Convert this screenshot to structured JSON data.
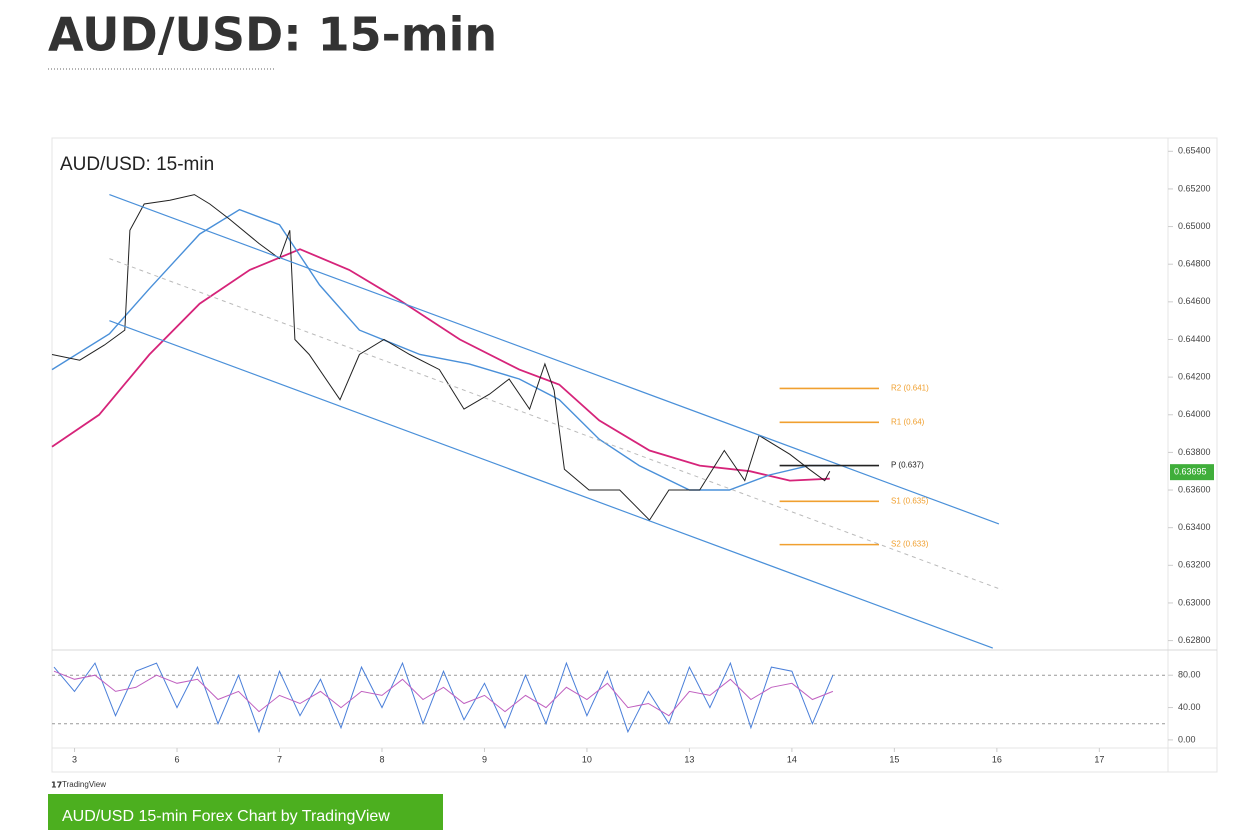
{
  "header": {
    "title": "AUD/USD: 15-min"
  },
  "chart_data": [
    {
      "type": "line",
      "title": "AUD/USD: 15-min",
      "xlim": [
        -0.22,
        10.67
      ],
      "ylim": [
        0.6275,
        0.6546
      ],
      "yticks": [
        {
          "value": 0.654,
          "label": "0.65400"
        },
        {
          "value": 0.652,
          "label": "0.65200"
        },
        {
          "value": 0.65,
          "label": "0.65000"
        },
        {
          "value": 0.648,
          "label": "0.64800"
        },
        {
          "value": 0.646,
          "label": "0.64600"
        },
        {
          "value": 0.644,
          "label": "0.64400"
        },
        {
          "value": 0.642,
          "label": "0.64200"
        },
        {
          "value": 0.64,
          "label": "0.64000"
        },
        {
          "value": 0.638,
          "label": "0.63800"
        },
        {
          "value": 0.636,
          "label": "0.63600"
        },
        {
          "value": 0.634,
          "label": "0.63400"
        },
        {
          "value": 0.632,
          "label": "0.63200"
        },
        {
          "value": 0.63,
          "label": "0.63000"
        },
        {
          "value": 0.628,
          "label": "0.62800"
        }
      ],
      "series": [
        {
          "color": "#d6247a",
          "width": 1.8,
          "x": [
            -0.22,
            0.24,
            0.73,
            1.22,
            1.71,
            2.2,
            2.68,
            3.17,
            3.76,
            4.34,
            4.73,
            5.12,
            5.61,
            6.1,
            6.59,
            6.98,
            7.37
          ],
          "values": [
            0.6383,
            0.64,
            0.6432,
            0.6459,
            0.6477,
            0.6488,
            0.6477,
            0.6461,
            0.644,
            0.6424,
            0.6416,
            0.6397,
            0.6381,
            0.6373,
            0.637,
            0.6365,
            0.6366
          ]
        },
        {
          "color": "#4a90d9",
          "width": 1.4,
          "x": [
            -0.22,
            0.34,
            0.73,
            1.22,
            1.61,
            2.0,
            2.39,
            2.78,
            3.37,
            3.85,
            4.34,
            4.73,
            5.12,
            5.51,
            6.0,
            6.39,
            6.78,
            7.17,
            7.37
          ],
          "values": [
            0.6424,
            0.6443,
            0.6467,
            0.6496,
            0.6509,
            0.6501,
            0.6469,
            0.6445,
            0.6432,
            0.6427,
            0.6419,
            0.6408,
            0.6387,
            0.6373,
            0.636,
            0.636,
            0.6368,
            0.6373,
            0.6373
          ]
        },
        {
          "color": "#222222",
          "width": 1,
          "x": [
            -0.22,
            0.05,
            0.29,
            0.49,
            0.54,
            0.68,
            0.93,
            1.17,
            1.32,
            1.51,
            1.8,
            2.0,
            2.1,
            2.15,
            2.29,
            2.59,
            2.78,
            3.02,
            3.27,
            3.56,
            3.8,
            4.05,
            4.24,
            4.44,
            4.59,
            4.68,
            4.78,
            5.02,
            5.32,
            5.61,
            5.8,
            6.1,
            6.34,
            6.54,
            6.68,
            6.98,
            7.17,
            7.32,
            7.37
          ],
          "values": [
            0.6432,
            0.6429,
            0.6437,
            0.6445,
            0.6498,
            0.6512,
            0.6514,
            0.6517,
            0.6512,
            0.6504,
            0.6491,
            0.6483,
            0.6498,
            0.644,
            0.6432,
            0.6408,
            0.6432,
            0.644,
            0.6432,
            0.6424,
            0.6403,
            0.6411,
            0.6419,
            0.6403,
            0.6427,
            0.6413,
            0.6371,
            0.636,
            0.636,
            0.6344,
            0.636,
            0.636,
            0.6381,
            0.6365,
            0.6389,
            0.6379,
            0.6371,
            0.6365,
            0.637
          ]
        },
        {
          "color": "#4a90d9",
          "width": 1.2,
          "x": [
            0.34,
            9.02
          ],
          "values": [
            0.6517,
            0.6342
          ]
        },
        {
          "color": "#4a90d9",
          "width": 1.2,
          "x": [
            0.34,
            8.96
          ],
          "values": [
            0.645,
            0.6276
          ]
        },
        {
          "color": "#bbbbbb",
          "width": 1,
          "dash": true,
          "x": [
            0.34,
            9.05
          ],
          "values": [
            0.6483,
            0.6307
          ]
        }
      ],
      "pivots": {
        "xspan": [
          6.88,
          7.85
        ],
        "labels": [
          "R2 (0.641)",
          "R1 (0.64)",
          "P (0.637)",
          "S1 (0.635)",
          "S2 (0.633)"
        ],
        "values": [
          0.6414,
          0.6396,
          0.6373,
          0.6354,
          0.6331
        ],
        "colors": [
          "#f0a030",
          "#f0a030",
          "#222222",
          "#f0a030",
          "#f0a030"
        ]
      },
      "last_price": 0.63695,
      "last_price_color": "#3fae3a"
    },
    {
      "type": "line",
      "xlim": [
        -0.22,
        10.67
      ],
      "ylim": [
        -10,
        105
      ],
      "xticks": [
        {
          "value": 0,
          "label": "3"
        },
        {
          "value": 1,
          "label": "6"
        },
        {
          "value": 2,
          "label": "7"
        },
        {
          "value": 3,
          "label": "8"
        },
        {
          "value": 4,
          "label": "9"
        },
        {
          "value": 5,
          "label": "10"
        },
        {
          "value": 6,
          "label": "13"
        },
        {
          "value": 7,
          "label": "14"
        },
        {
          "value": 8,
          "label": "15"
        },
        {
          "value": 9,
          "label": "16"
        },
        {
          "value": 10,
          "label": "17"
        }
      ],
      "yticks": [
        {
          "value": 80,
          "label": "80.00"
        },
        {
          "value": 40,
          "label": "40.00"
        },
        {
          "value": 0,
          "label": "0.00"
        }
      ],
      "bands": [
        80,
        20
      ],
      "series": [
        {
          "color": "#4a7fd9",
          "width": 1,
          "x": [
            -0.2,
            0,
            0.2,
            0.4,
            0.6,
            0.8,
            1,
            1.2,
            1.4,
            1.6,
            1.8,
            2,
            2.2,
            2.4,
            2.6,
            2.8,
            3,
            3.2,
            3.4,
            3.6,
            3.8,
            4,
            4.2,
            4.4,
            4.6,
            4.8,
            5,
            5.2,
            5.4,
            5.6,
            5.8,
            6,
            6.2,
            6.4,
            6.6,
            6.8,
            7,
            7.2,
            7.4
          ],
          "values": [
            90,
            60,
            95,
            30,
            85,
            95,
            40,
            90,
            20,
            80,
            10,
            85,
            30,
            75,
            15,
            90,
            40,
            95,
            20,
            85,
            25,
            70,
            15,
            80,
            20,
            95,
            30,
            85,
            10,
            60,
            20,
            90,
            40,
            95,
            15,
            90,
            85,
            20,
            80
          ]
        },
        {
          "color": "#c060c0",
          "width": 1,
          "x": [
            -0.2,
            0,
            0.2,
            0.4,
            0.6,
            0.8,
            1,
            1.2,
            1.4,
            1.6,
            1.8,
            2,
            2.2,
            2.4,
            2.6,
            2.8,
            3,
            3.2,
            3.4,
            3.6,
            3.8,
            4,
            4.2,
            4.4,
            4.6,
            4.8,
            5,
            5.2,
            5.4,
            5.6,
            5.8,
            6,
            6.2,
            6.4,
            6.6,
            6.8,
            7,
            7.2,
            7.4
          ],
          "values": [
            85,
            75,
            80,
            60,
            65,
            80,
            70,
            75,
            50,
            60,
            35,
            55,
            45,
            60,
            40,
            60,
            55,
            75,
            50,
            65,
            45,
            55,
            35,
            55,
            40,
            65,
            50,
            70,
            40,
            45,
            30,
            60,
            55,
            75,
            50,
            65,
            70,
            50,
            60
          ]
        }
      ]
    }
  ],
  "footer": {
    "logo": "TradingView",
    "link": "AUD/USD 15-min Forex Chart by TradingView"
  }
}
